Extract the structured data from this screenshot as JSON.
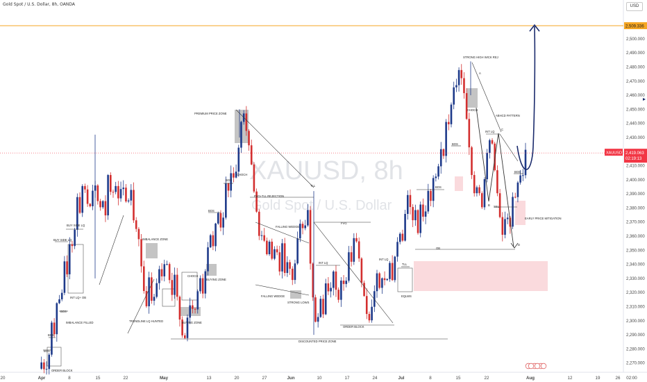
{
  "header": {
    "symbol_line": "Gold Spot / U.S. Dollar, 8h, OANDA",
    "currency": "USD"
  },
  "watermark": {
    "symbol": "XAUUSD, 8h",
    "description": "Gold Spot / U.S. Dollar"
  },
  "colors": {
    "up": "#1e3a8a",
    "down": "#d32f2f",
    "target": "#f5a623",
    "current": "#f23645",
    "zone": "#fadadd",
    "gray_box": "#c4c4c4"
  },
  "price_tags": {
    "target_price": "2,509.336",
    "current_price": "2,419.063",
    "countdown": "02:19:13",
    "symbol_tag": "XAUUSD"
  },
  "chart_data": {
    "type": "candlestick",
    "title": "Gold Spot / U.S. Dollar, 8h, OANDA",
    "y_ticks": [
      2270,
      2280,
      2290,
      2300,
      2310,
      2320,
      2330,
      2340,
      2350,
      2360,
      2370,
      2380,
      2390,
      2400,
      2410,
      2420,
      2430,
      2440,
      2450,
      2460,
      2470,
      2480,
      2490,
      2500
    ],
    "y_tick_labels": [
      "2,270.000",
      "2,280.000",
      "2,290.000",
      "2,300.000",
      "2,310.000",
      "2,320.000",
      "2,330.000",
      "2,340.000",
      "2,350.000",
      "2,360.000",
      "2,370.000",
      "2,380.000",
      "2,390.000",
      "2,400.000",
      "2,410.000",
      "2,420.000",
      "2,430.000",
      "2,440.000",
      "2,450.000",
      "2,460.000",
      "2,470.000",
      "2,480.000",
      "2,490.000",
      "2,500.000"
    ],
    "ylim": [
      2264,
      2511
    ],
    "x_ticks": [
      "20",
      "Apr",
      "8",
      "15",
      "22",
      "May",
      "13",
      "20",
      "27",
      "Jun",
      "10",
      "17",
      "24",
      "Jul",
      "8",
      "15",
      "22",
      "Aug",
      "12",
      "19",
      "26",
      "02:00"
    ],
    "target_price": 2509.336,
    "current_price": 2419.063,
    "path": [
      [
        2266,
        2271,
        2266,
        2269,
        2299,
        2292,
        2319,
        2310,
        2345,
        2330,
        2362,
        2350,
        2392,
        2375,
        2404,
        2385,
        2380,
        2395,
        2393
      ],
      [
        2376,
        2391,
        2369,
        2410,
        2384,
        2398,
        2387,
        2396,
        2390,
        2381,
        2397,
        2372,
        2366,
        2350
      ],
      [
        2325,
        2312,
        2331,
        2308,
        2322,
        2339,
        2330,
        2345,
        2333,
        2318,
        2335,
        2312,
        2297,
        2285
      ],
      [
        2301,
        2312,
        2302,
        2318,
        2331,
        2318,
        2340,
        2365,
        2352,
        2372,
        2376,
        2362,
        2397,
        2390,
        2405,
        2395,
        2416,
        2440,
        2448,
        2432
      ],
      [
        2418,
        2395,
        2376,
        2352,
        2366,
        2342,
        2360,
        2340,
        2358,
        2334,
        2352,
        2330,
        2345,
        2325,
        2342,
        2359,
        2370,
        2364,
        2386
      ],
      [
        2335,
        2308,
        2290,
        2320,
        2302,
        2336,
        2315,
        2342,
        2322,
        2311,
        2335,
        2320,
        2352,
        2342,
        2366,
        2352,
        2330,
        2318,
        2298,
        2306
      ],
      [
        2322,
        2333,
        2324,
        2335,
        2326,
        2342,
        2330,
        2351,
        2362,
        2356,
        2375,
        2393,
        2368,
        2382,
        2364,
        2385,
        2370,
        2396,
        2386,
        2408,
        2398,
        2425,
        2415,
        2442,
        2438,
        2470,
        2463
      ],
      [
        2478,
        2470,
        2450,
        2428,
        2400,
        2385,
        2402,
        2374,
        2398,
        2420,
        2432,
        2412,
        2390,
        2372,
        2360,
        2378,
        2362,
        2390,
        2385,
        2405,
        2400,
        2419
      ]
    ],
    "annotations": [
      "BOS",
      "ORDER BLOCK",
      "IMBALANCE FILLED",
      "INT LQ+ OB",
      "BUY SIDE LQ",
      "IMBALANCE ZONE",
      "TRENDLINE LQ HUNTED",
      "BUYING ZONE",
      "CHOCH",
      "PREMIUM PRICE ZONE",
      "FVG+TLL REJECTION",
      "FALLING WEDGE",
      "STRONG LOWS",
      "TLL",
      "FVG",
      "INT LQ",
      "DISCOUNTED PRICE ZONE",
      "EQLWS",
      "OB",
      "STRONG HIGH WICK REJ",
      "ABHCD PATTERN",
      "A",
      "B",
      "C",
      "D",
      "SSL",
      "EARLY PRICE MITIGATION"
    ]
  }
}
